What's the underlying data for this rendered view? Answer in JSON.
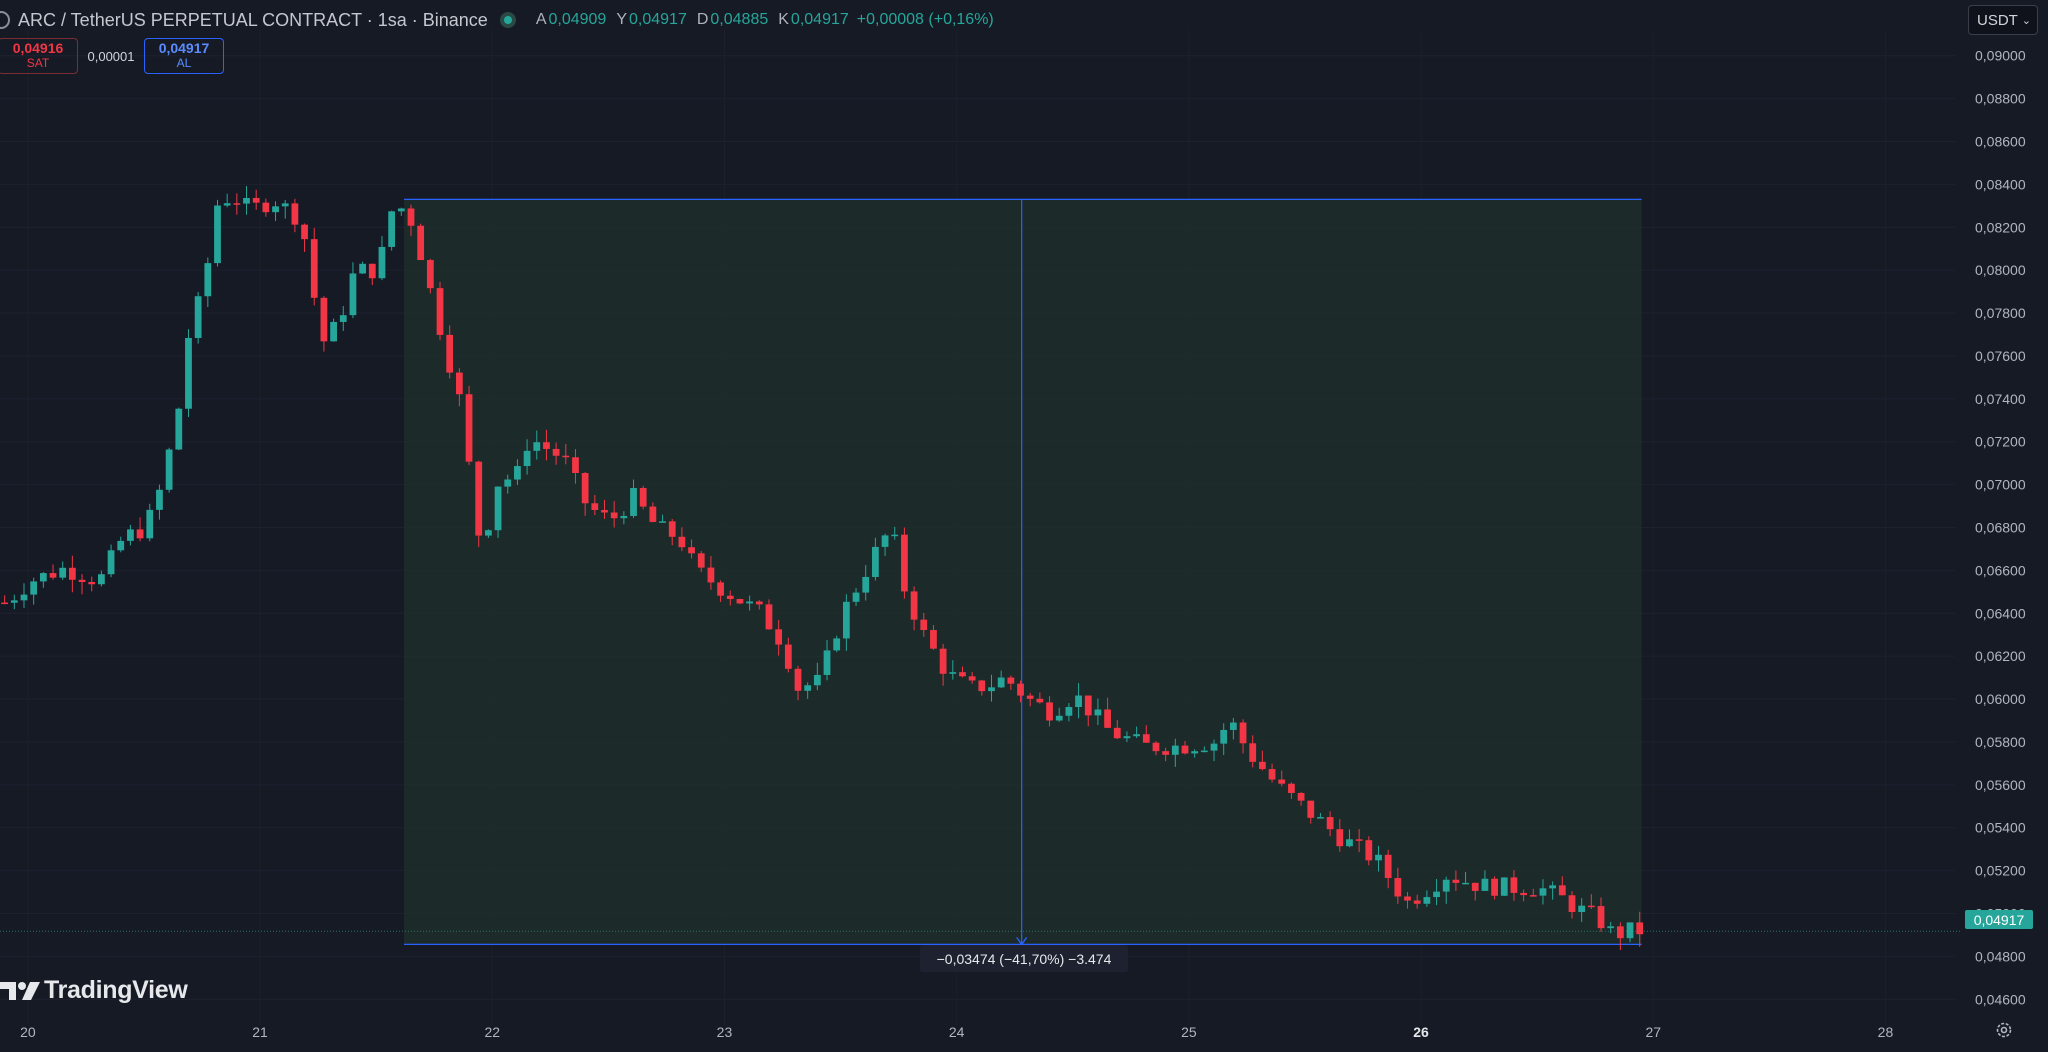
{
  "header": {
    "title": "ARC / TetherUS PERPETUAL CONTRACT · 1sa · Binance",
    "ohlc": [
      {
        "key": "A",
        "value": "0,04909"
      },
      {
        "key": "Y",
        "value": "0,04917"
      },
      {
        "key": "D",
        "value": "0,04885"
      },
      {
        "key": "K",
        "value": "0,04917"
      }
    ],
    "change": "+0,00008 (+0,16%)"
  },
  "trade": {
    "sell_price": "0,04916",
    "sell_label": "SAT",
    "spread": "0,00001",
    "buy_price": "0,04917",
    "buy_label": "AL"
  },
  "currency": "USDT",
  "watermark": "TradingView",
  "measure": {
    "label": "−0,03474 (−41,70%) −3.474",
    "from_price": 0.0833,
    "to_price": 0.04856,
    "start_day": 21.62,
    "end_day": 26.95,
    "mid_day": 24.28
  },
  "last_price": "0,04917",
  "colors": {
    "up": "#26a69a",
    "down": "#f23645",
    "measure_fill": "#1f2e2b",
    "measure_line": "#2962ff"
  },
  "chart_data": {
    "type": "candlestick",
    "interval": "1h",
    "x_ticks": [
      {
        "day": 20,
        "label": "20"
      },
      {
        "day": 21,
        "label": "21"
      },
      {
        "day": 22,
        "label": "22"
      },
      {
        "day": 23,
        "label": "23"
      },
      {
        "day": 24,
        "label": "24"
      },
      {
        "day": 25,
        "label": "25"
      },
      {
        "day": 26,
        "label": "26",
        "bold": true
      },
      {
        "day": 27,
        "label": "27"
      },
      {
        "day": 28,
        "label": "28"
      }
    ],
    "y_ticks": [
      "0,04600",
      "0,04800",
      "0,05000",
      "0,05200",
      "0,05400",
      "0,05600",
      "0,05800",
      "0,06000",
      "0,06200",
      "0,06400",
      "0,06600",
      "0,06800",
      "0,07000",
      "0,07200",
      "0,07400",
      "0,07600",
      "0,07800",
      "0,08000",
      "0,08200",
      "0,08400",
      "0,08600",
      "0,08800",
      "0,09000"
    ],
    "ylim": [
      0.0448,
      0.0912
    ],
    "xlim": [
      19.88,
      28.7
    ],
    "key_points": [
      [
        19.95,
        0.0645
      ],
      [
        20.05,
        0.0655
      ],
      [
        20.2,
        0.0661
      ],
      [
        20.35,
        0.0655
      ],
      [
        20.45,
        0.0675
      ],
      [
        20.55,
        0.068
      ],
      [
        20.62,
        0.07
      ],
      [
        20.7,
        0.074
      ],
      [
        20.74,
        0.0775
      ],
      [
        20.8,
        0.079
      ],
      [
        20.85,
        0.083
      ],
      [
        20.92,
        0.0835
      ],
      [
        21.0,
        0.0828
      ],
      [
        21.1,
        0.0833
      ],
      [
        21.2,
        0.0825
      ],
      [
        21.25,
        0.081
      ],
      [
        21.3,
        0.0765
      ],
      [
        21.38,
        0.0775
      ],
      [
        21.45,
        0.08
      ],
      [
        21.55,
        0.08
      ],
      [
        21.62,
        0.0833
      ],
      [
        21.7,
        0.0822
      ],
      [
        21.8,
        0.078
      ],
      [
        21.9,
        0.074
      ],
      [
        22.0,
        0.0665
      ],
      [
        22.05,
        0.07
      ],
      [
        22.15,
        0.0705
      ],
      [
        22.2,
        0.0722
      ],
      [
        22.35,
        0.0712
      ],
      [
        22.45,
        0.069
      ],
      [
        22.55,
        0.0683
      ],
      [
        22.65,
        0.0694
      ],
      [
        22.75,
        0.068
      ],
      [
        22.85,
        0.0675
      ],
      [
        22.92,
        0.066
      ],
      [
        23.05,
        0.065
      ],
      [
        23.2,
        0.064
      ],
      [
        23.3,
        0.0625
      ],
      [
        23.35,
        0.0605
      ],
      [
        23.45,
        0.0608
      ],
      [
        23.55,
        0.064
      ],
      [
        23.65,
        0.066
      ],
      [
        23.7,
        0.067
      ],
      [
        23.76,
        0.068
      ],
      [
        23.82,
        0.065
      ],
      [
        23.9,
        0.063
      ],
      [
        24.0,
        0.0612
      ],
      [
        24.1,
        0.0605
      ],
      [
        24.2,
        0.0607
      ],
      [
        24.25,
        0.061
      ],
      [
        24.35,
        0.06
      ],
      [
        24.45,
        0.0594
      ],
      [
        24.55,
        0.0602
      ],
      [
        24.7,
        0.0585
      ],
      [
        24.85,
        0.0578
      ],
      [
        25.0,
        0.0578
      ],
      [
        25.15,
        0.058
      ],
      [
        25.22,
        0.059
      ],
      [
        25.3,
        0.0575
      ],
      [
        25.42,
        0.056
      ],
      [
        25.55,
        0.0548
      ],
      [
        25.7,
        0.0535
      ],
      [
        25.85,
        0.0525
      ],
      [
        25.98,
        0.0505
      ],
      [
        26.05,
        0.051
      ],
      [
        26.15,
        0.0518
      ],
      [
        26.3,
        0.0513
      ],
      [
        26.45,
        0.0512
      ],
      [
        26.55,
        0.0512
      ],
      [
        26.65,
        0.0507
      ],
      [
        26.72,
        0.0502
      ],
      [
        26.8,
        0.0498
      ],
      [
        26.87,
        0.049
      ],
      [
        26.95,
        0.0492
      ]
    ],
    "last_price": 0.04917
  }
}
